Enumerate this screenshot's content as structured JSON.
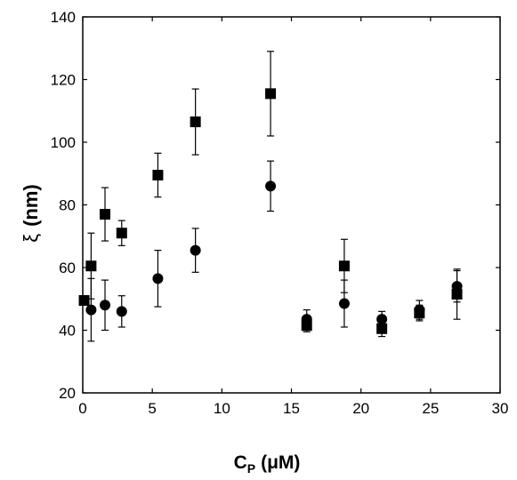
{
  "chart_data": {
    "type": "scatter",
    "title": "",
    "xlabel": {
      "main": "C",
      "sub": "P",
      "unit": "(μM)"
    },
    "ylabel": {
      "main": "ξ",
      "unit": "(nm)"
    },
    "xlim": [
      0,
      30
    ],
    "ylim": [
      20,
      140
    ],
    "xticks": [
      0,
      5,
      10,
      15,
      20,
      25,
      30
    ],
    "yticks": [
      20,
      40,
      60,
      80,
      100,
      120,
      140
    ],
    "grid": false,
    "legend": "none",
    "series": [
      {
        "marker": "square",
        "color": "#000000",
        "points": [
          {
            "x": 0.1,
            "y": 49.5,
            "err": 0
          },
          {
            "x": 0.6,
            "y": 60.5,
            "err": 10.5
          },
          {
            "x": 1.6,
            "y": 77,
            "err": 8.5
          },
          {
            "x": 2.8,
            "y": 71,
            "err": 4
          },
          {
            "x": 5.4,
            "y": 89.5,
            "err": 7
          },
          {
            "x": 8.1,
            "y": 106.5,
            "err": 10.5
          },
          {
            "x": 13.5,
            "y": 115.5,
            "err": 13.5
          },
          {
            "x": 16.1,
            "y": 41.5,
            "err": 2
          },
          {
            "x": 18.8,
            "y": 60.5,
            "err": 8.5
          },
          {
            "x": 21.5,
            "y": 40.5,
            "err": 2.5
          },
          {
            "x": 24.2,
            "y": 45.5,
            "err": 2.5
          },
          {
            "x": 26.9,
            "y": 51.5,
            "err": 8
          }
        ]
      },
      {
        "marker": "circle",
        "color": "#000000",
        "points": [
          {
            "x": 0.6,
            "y": 46.5,
            "err": 10
          },
          {
            "x": 1.6,
            "y": 48,
            "err": 8
          },
          {
            "x": 2.8,
            "y": 46,
            "err": 5
          },
          {
            "x": 5.4,
            "y": 56.5,
            "err": 9
          },
          {
            "x": 8.1,
            "y": 65.5,
            "err": 7
          },
          {
            "x": 13.5,
            "y": 86,
            "err": 8
          },
          {
            "x": 16.1,
            "y": 43.5,
            "err": 3
          },
          {
            "x": 18.8,
            "y": 48.5,
            "err": 7.5
          },
          {
            "x": 21.5,
            "y": 43.5,
            "err": 2.5
          },
          {
            "x": 24.2,
            "y": 46.5,
            "err": 3
          },
          {
            "x": 26.9,
            "y": 54,
            "err": 5
          }
        ]
      }
    ]
  }
}
